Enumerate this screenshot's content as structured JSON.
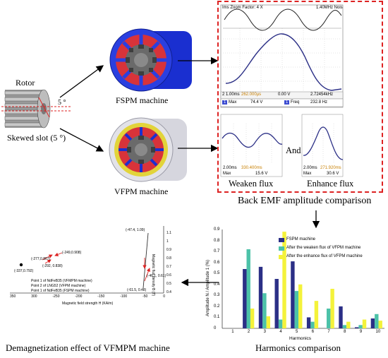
{
  "labels": {
    "rotor": "Rotor",
    "rotor_angle": "5 °",
    "skewed_slot": "Skewed slot (5 °)",
    "fspm": "FSPM machine",
    "vfpm": "VFPM machine",
    "weaken": "Weaken flux",
    "and": "And",
    "enhance": "Enhance flux",
    "back_emf": "Back EMF amplitude comparison",
    "demag_title": "Demagnetization effect of VFMPM machine",
    "harm_title": "Harmonics comparison"
  },
  "scope_main": {
    "header_left": "Ims  Zoom Factor: 4 X",
    "header_right": "1.40MHz  Nois",
    "bottom1_a": "2  1.00ms",
    "bottom1_b": "262.000µs",
    "bottom1_c": "0.00 V",
    "bottom1_d": "2.72454kHz",
    "max_label": "Max",
    "max_value": "74.4 V",
    "freq_label": "Freq",
    "freq_value": "232.8 Hz",
    "chan": "1"
  },
  "scope_weak": {
    "time": "2.00ms",
    "offset": "330.400ms",
    "max_label": "Max",
    "max_value": "15.6 V"
  },
  "scope_enh": {
    "time": "2.00ms",
    "offset": "271.920ms",
    "max_label": "Max",
    "max_value": "30.6 V"
  },
  "demag": {
    "points": [
      "(-277,0.867)",
      "(-249,0.908)",
      "(-292, 0.838)",
      "(-337,0.792)",
      "(-47.4, 1.09)",
      "(-46.1, 0.61)",
      "(-61.5, 0.48)"
    ],
    "legend": [
      "Point 1 of NdFeB35 (VFMPM machine)",
      "Point 2 of LNG52 (VFPM machine)",
      "Point 1 of NdFeB35 (FSPM machine)"
    ],
    "xlabel": "Magnetic field strength H (KA/m)",
    "ylabel": "Magnetic flux density B (T)",
    "xticks": [
      "350",
      "300",
      "-250",
      "-200",
      "-150",
      "-100",
      "-50",
      "0"
    ],
    "yticks": [
      "1.1",
      "1",
      "0.9",
      "0.8",
      "0.7",
      "0.6",
      "0.5",
      "0.4"
    ]
  },
  "chart_data": {
    "type": "bar",
    "categories": [
      "1",
      "2",
      "3",
      "4",
      "5",
      "6",
      "7",
      "8",
      "9",
      "10"
    ],
    "series": [
      {
        "name": "FSPM machine",
        "color": "#2b2f86",
        "values": [
          0,
          0.54,
          0.56,
          0.45,
          0.61,
          0.1,
          0,
          0.2,
          0.01,
          0.09
        ]
      },
      {
        "name": "After the weaken flux of VFPM machine",
        "color": "#4cc2a8",
        "values": [
          0,
          0.72,
          0.32,
          0.08,
          0.34,
          0.06,
          0.18,
          0.03,
          0.03,
          0.13
        ]
      },
      {
        "name": "After the enhance flux of VFPM machine",
        "color": "#f4f23a",
        "values": [
          0,
          0.18,
          0.11,
          0.88,
          0.4,
          0.25,
          0.36,
          0.06,
          0.08,
          0.07
        ]
      }
    ],
    "xlabel": "Harmonics",
    "ylabel": "Amplitude N / Amplitude 1 (%)",
    "ylim": [
      0,
      0.9
    ],
    "yticks": [
      "0",
      "0.1",
      "0.2",
      "0.3",
      "0.4",
      "0.5",
      "0.6",
      "0.7",
      "0.8",
      "0.9"
    ]
  }
}
